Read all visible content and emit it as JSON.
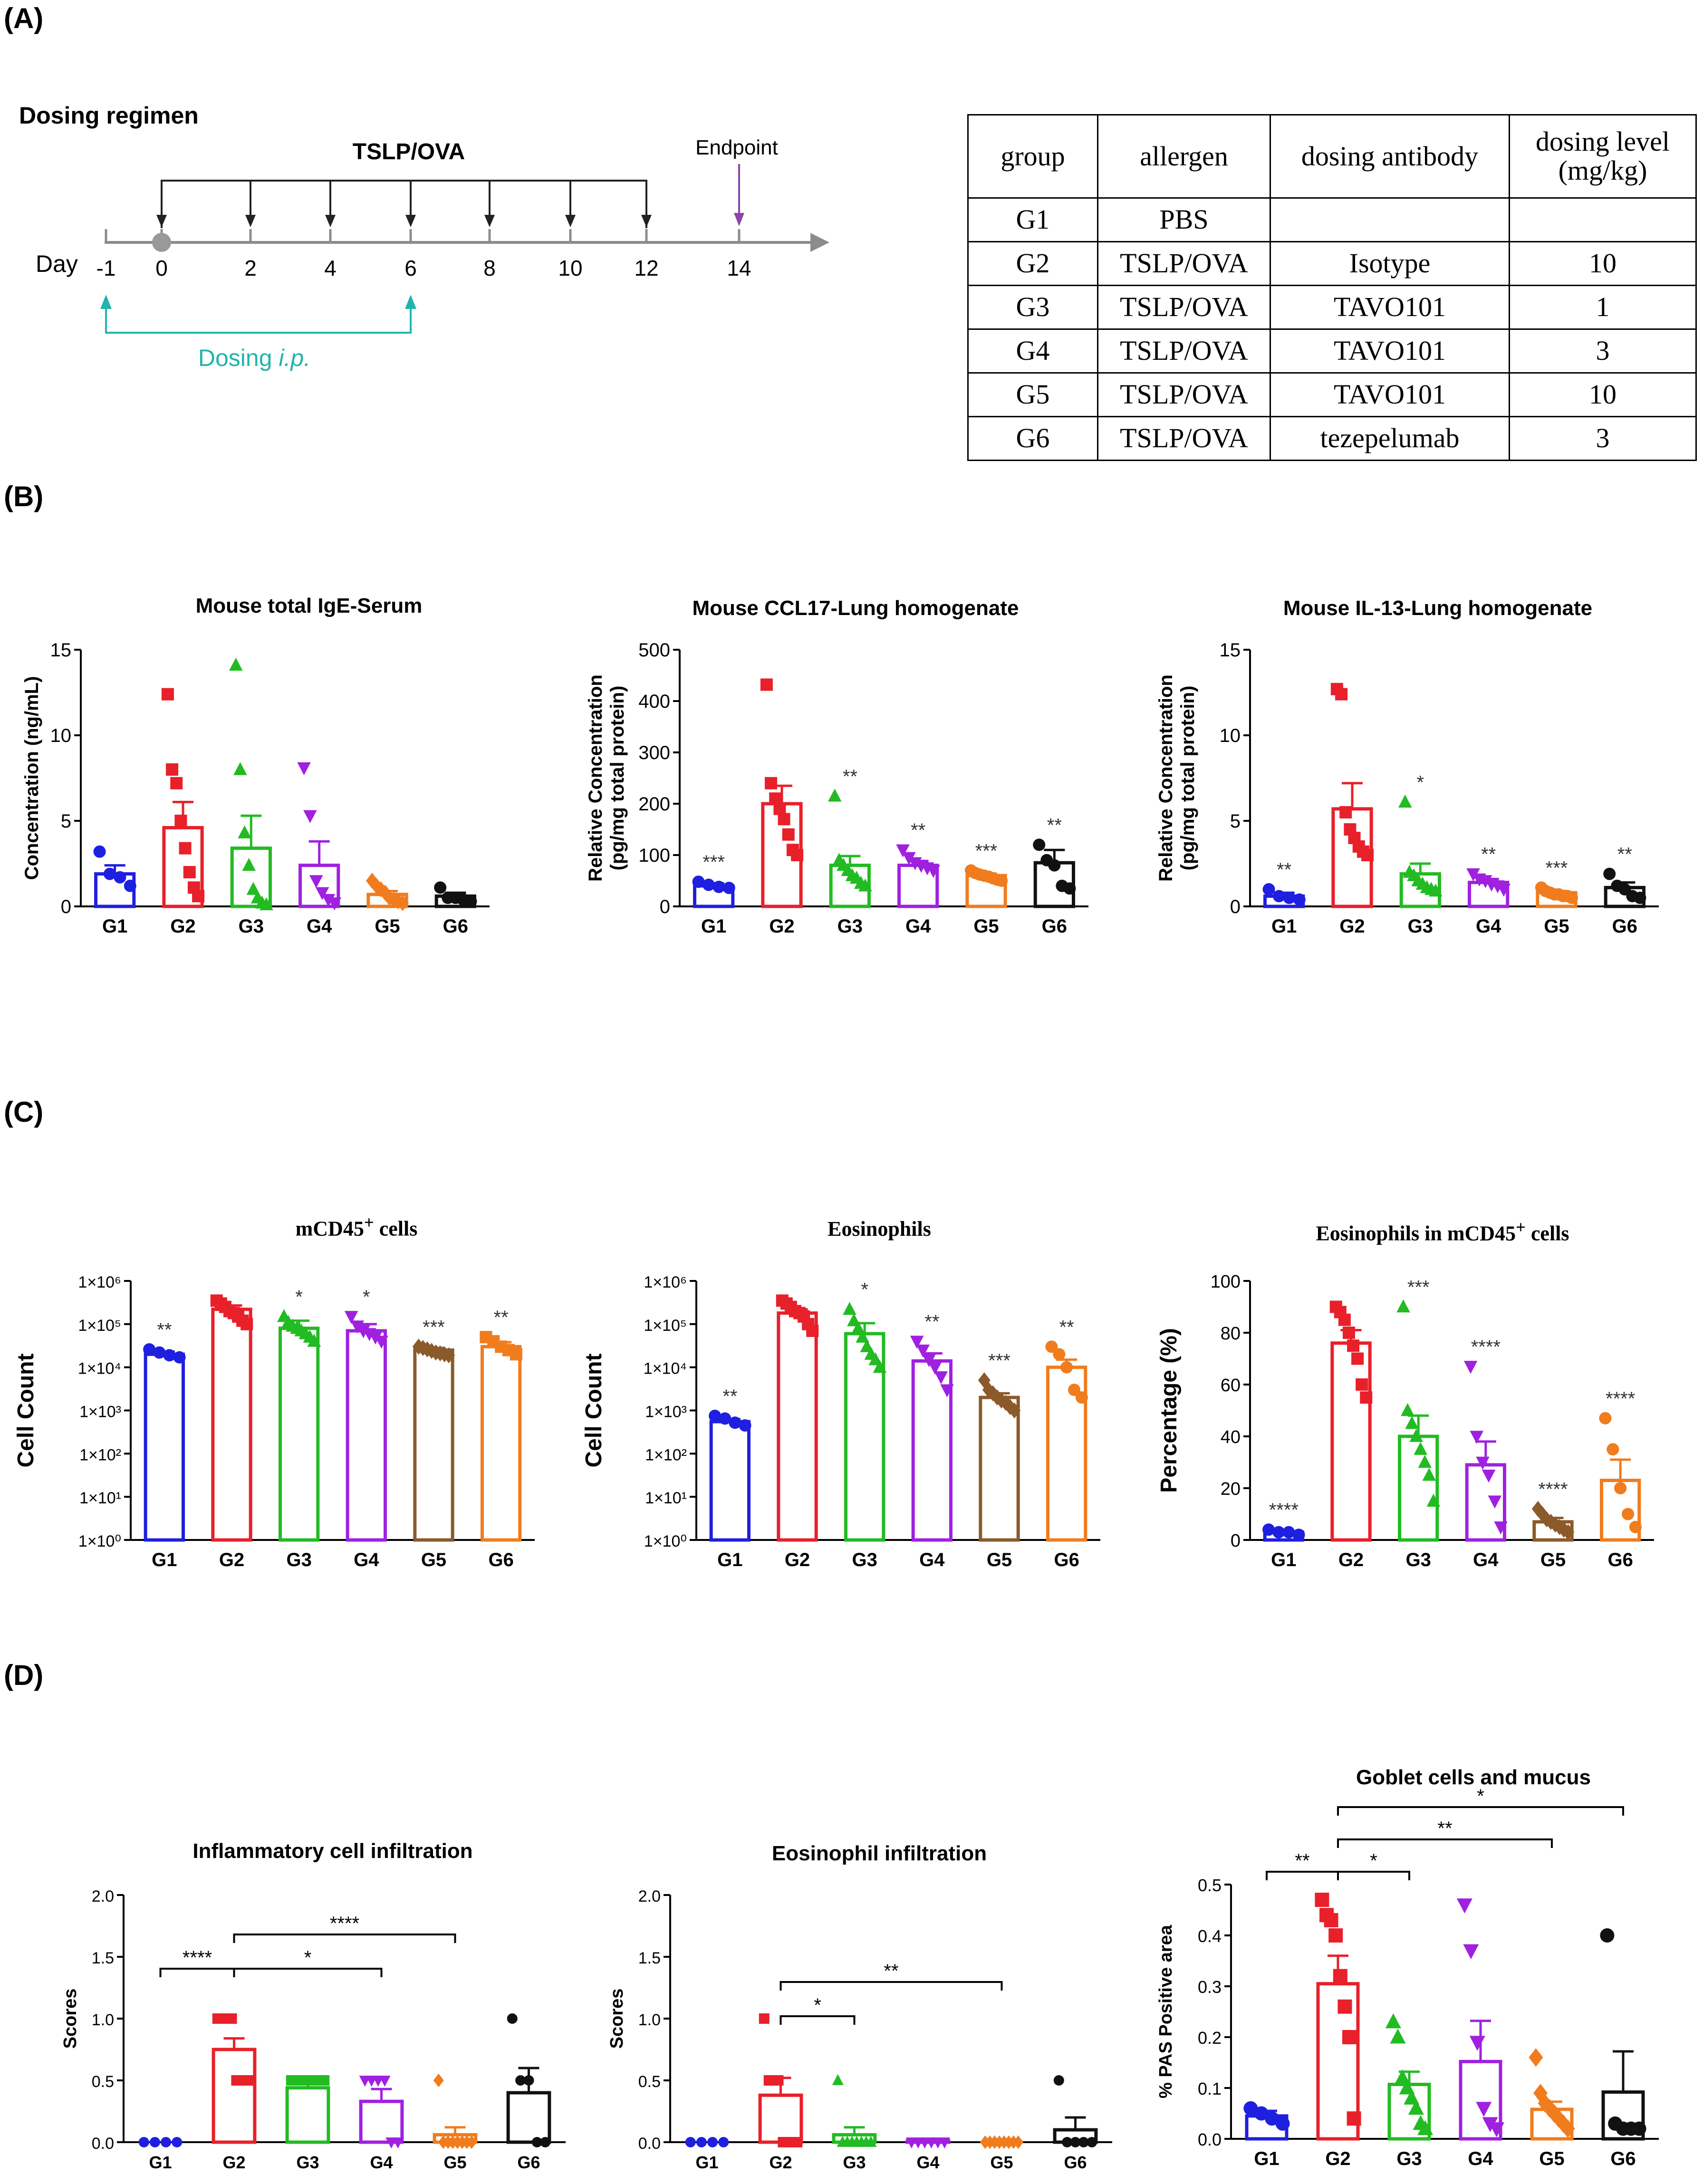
{
  "panels": {
    "A": "(A)",
    "B": "(B)",
    "C": "(C)",
    "D": "(D)"
  },
  "regimen": {
    "title": "Dosing regimen",
    "treatment_label": "TSLP/OVA",
    "endpoint_label": "Endpoint",
    "day_label": "Day",
    "days": [
      "-1",
      "0",
      "2",
      "4",
      "6",
      "8",
      "10",
      "12",
      "14"
    ],
    "dosing_label": "Dosing",
    "dosing_route": "i.p.",
    "colors": {
      "timeline": "#8c8c8c",
      "dosing": "#1fb5ad",
      "endpoint": "#8e44ad"
    }
  },
  "dosing_table": {
    "headers": [
      "group",
      "allergen",
      "dosing antibody",
      "dosing level (mg/kg)"
    ],
    "rows": [
      [
        "G1",
        "PBS",
        "",
        ""
      ],
      [
        "G2",
        "TSLP/OVA",
        "Isotype",
        "10"
      ],
      [
        "G3",
        "TSLP/OVA",
        "TAVO101",
        "1"
      ],
      [
        "G4",
        "TSLP/OVA",
        "TAVO101",
        "3"
      ],
      [
        "G5",
        "TSLP/OVA",
        "TAVO101",
        "10"
      ],
      [
        "G6",
        "TSLP/OVA",
        "tezepelumab",
        "3"
      ]
    ]
  },
  "group_colors": [
    "#1f1fe0",
    "#e8202a",
    "#22bb22",
    "#a020e0",
    "#f07c1e",
    "#111111"
  ],
  "group_colors_c": [
    "#1f1fe0",
    "#e8202a",
    "#22bb22",
    "#a020e0",
    "#8b5a2b",
    "#f07c1e"
  ],
  "chart_data": [
    {
      "id": "b1",
      "type": "bar",
      "title": "Mouse total IgE-Serum",
      "ylabel": "Concentration (ng/mL)",
      "ylim": [
        0,
        15
      ],
      "yticks": [
        0,
        5,
        10,
        15
      ],
      "categories": [
        "G1",
        "G2",
        "G3",
        "G4",
        "G5",
        "G6"
      ],
      "values": [
        1.9,
        4.6,
        3.4,
        2.4,
        0.7,
        0.6
      ],
      "errors": [
        0.5,
        1.5,
        1.9,
        1.4,
        0.2,
        0.2
      ],
      "significance": [
        "",
        "",
        "",
        "",
        "",
        ""
      ],
      "points": [
        [
          3.2,
          1.9,
          1.7,
          1.2
        ],
        [
          12.4,
          8.0,
          7.2,
          5.0,
          3.4,
          2.0,
          1.1,
          0.6
        ],
        [
          14.1,
          8.0,
          4.3,
          2.4,
          1.0,
          0.5,
          0.2,
          0.1
        ],
        [
          8.1,
          5.3,
          1.5,
          0.8,
          0.4,
          0.2
        ],
        [
          1.5,
          1.2,
          1.0,
          0.8,
          0.5,
          0.4,
          0.3,
          0.2
        ],
        [
          1.1,
          0.5,
          0.5,
          0.4,
          0.3
        ]
      ],
      "marker_shapes": [
        "circle",
        "square",
        "triangle",
        "triangle-down",
        "diamond",
        "circle"
      ]
    },
    {
      "id": "b2",
      "type": "bar",
      "title": "Mouse CCL17-Lung homogenate",
      "ylabel": "Relative Concentration (pg/mg total protein)",
      "ylim": [
        0,
        500
      ],
      "yticks": [
        0,
        100,
        200,
        300,
        400,
        500
      ],
      "categories": [
        "G1",
        "G2",
        "G3",
        "G4",
        "G5",
        "G6"
      ],
      "values": [
        40,
        200,
        80,
        80,
        60,
        85
      ],
      "errors": [
        5,
        35,
        18,
        8,
        4,
        25
      ],
      "significance": [
        "***",
        "",
        "**",
        "**",
        "***",
        "**"
      ],
      "points": [
        [
          48,
          42,
          38,
          36
        ],
        [
          432,
          240,
          210,
          190,
          170,
          140,
          110,
          100
        ],
        [
          215,
          90,
          80,
          70,
          60,
          55,
          45,
          40
        ],
        [
          110,
          95,
          85,
          80,
          75,
          70
        ],
        [
          70,
          65,
          62,
          60,
          58,
          55,
          52,
          50
        ],
        [
          120,
          90,
          80,
          40,
          35
        ]
      ],
      "marker_shapes": [
        "circle",
        "square",
        "triangle",
        "triangle-down",
        "circle",
        "circle"
      ]
    },
    {
      "id": "b3",
      "type": "bar",
      "title": "Mouse IL-13-Lung homogenate",
      "ylabel": "Relative Concentration (pg/mg total protein)",
      "ylim": [
        0,
        15
      ],
      "yticks": [
        0,
        5,
        10,
        15
      ],
      "categories": [
        "G1",
        "G2",
        "G3",
        "G4",
        "G5",
        "G6"
      ],
      "values": [
        0.6,
        5.7,
        1.9,
        1.4,
        0.8,
        1.1
      ],
      "errors": [
        0.2,
        1.5,
        0.6,
        0.2,
        0.1,
        0.3
      ],
      "significance": [
        "**",
        "",
        "*",
        "**",
        "***",
        "**"
      ],
      "points": [
        [
          1.0,
          0.6,
          0.5,
          0.4
        ],
        [
          12.7,
          12.4,
          5.5,
          4.5,
          4.0,
          3.5,
          3.2,
          3.0
        ],
        [
          6.1,
          2.0,
          1.8,
          1.5,
          1.3,
          1.1,
          1.0,
          0.9
        ],
        [
          1.9,
          1.6,
          1.5,
          1.3,
          1.2,
          1.0
        ],
        [
          1.1,
          0.9,
          0.8,
          0.7,
          0.7,
          0.6,
          0.6,
          0.5
        ],
        [
          1.9,
          1.2,
          1.0,
          0.6,
          0.5
        ]
      ],
      "marker_shapes": [
        "circle",
        "square",
        "triangle",
        "triangle-down",
        "circle",
        "circle"
      ]
    },
    {
      "id": "c1",
      "type": "bar",
      "scale": "log",
      "title": "mCD45+ cells",
      "ylabel": "Cell Count",
      "ylim": [
        1,
        1000000
      ],
      "yticks": [
        "1×10⁰",
        "1×10¹",
        "1×10²",
        "1×10³",
        "1×10⁴",
        "1×10⁵",
        "1×10⁶"
      ],
      "categories": [
        "G1",
        "G2",
        "G3",
        "G4",
        "G5",
        "G6"
      ],
      "values": [
        20000,
        220000,
        80000,
        70000,
        25000,
        30000
      ],
      "errors": [
        3000,
        50000,
        40000,
        30000,
        3000,
        8000
      ],
      "significance": [
        "**",
        "",
        "*",
        "*",
        "***",
        "**"
      ],
      "points": [
        [
          26000,
          22000,
          19000,
          17000
        ],
        [
          350000,
          300000,
          250000,
          200000,
          180000,
          150000,
          120000,
          100000
        ],
        [
          150000,
          110000,
          90000,
          80000,
          70000,
          60000,
          50000,
          40000
        ],
        [
          150000,
          90000,
          70000,
          60000,
          50000,
          40000
        ],
        [
          30000,
          28000,
          26000,
          24000,
          22000,
          21000,
          20000,
          19000
        ],
        [
          50000,
          40000,
          30000,
          25000,
          20000
        ]
      ],
      "marker_shapes": [
        "circle",
        "square",
        "triangle",
        "triangle-down",
        "diamond",
        "square"
      ]
    },
    {
      "id": "c2",
      "type": "bar",
      "scale": "log",
      "title": "Eosinophils",
      "ylabel": "Cell Count",
      "ylim": [
        1,
        1000000
      ],
      "yticks": [
        "1×10⁰",
        "1×10¹",
        "1×10²",
        "1×10³",
        "1×10⁴",
        "1×10⁵",
        "1×10⁶"
      ],
      "categories": [
        "G1",
        "G2",
        "G3",
        "G4",
        "G5",
        "G6"
      ],
      "values": [
        550,
        180000,
        60000,
        14000,
        2000,
        10000
      ],
      "errors": [
        80,
        40000,
        45000,
        7000,
        500,
        5000
      ],
      "significance": [
        "**",
        "",
        "*",
        "**",
        "***",
        "**"
      ],
      "points": [
        [
          750,
          650,
          520,
          450
        ],
        [
          350000,
          300000,
          250000,
          200000,
          180000,
          150000,
          100000,
          70000
        ],
        [
          220000,
          120000,
          80000,
          50000,
          30000,
          20000,
          15000,
          10000
        ],
        [
          40000,
          25000,
          15000,
          10000,
          6000,
          3000
        ],
        [
          5000,
          3000,
          2500,
          2000,
          1700,
          1500,
          1200,
          1000
        ],
        [
          30000,
          20000,
          10000,
          3000,
          2000
        ]
      ],
      "marker_shapes": [
        "circle",
        "square",
        "triangle",
        "triangle-down",
        "diamond",
        "circle"
      ]
    },
    {
      "id": "c3",
      "type": "bar",
      "title": "Eosinophils in mCD45+ cells",
      "ylabel": "Percentage (%)",
      "ylim": [
        0,
        100
      ],
      "yticks": [
        0,
        20,
        40,
        60,
        80,
        100
      ],
      "categories": [
        "G1",
        "G2",
        "G3",
        "G4",
        "G5",
        "G6"
      ],
      "values": [
        3,
        76,
        40,
        29,
        7,
        23
      ],
      "errors": [
        0.5,
        5,
        8,
        9,
        1.5,
        8
      ],
      "significance": [
        "****",
        "",
        "***",
        "****",
        "****",
        "****"
      ],
      "points": [
        [
          4,
          3,
          3,
          2
        ],
        [
          90,
          88,
          85,
          80,
          75,
          70,
          60,
          55
        ],
        [
          90,
          50,
          45,
          40,
          35,
          30,
          25,
          15
        ],
        [
          67,
          40,
          30,
          25,
          15,
          5
        ],
        [
          12,
          10,
          8,
          7,
          6,
          5,
          4,
          3
        ],
        [
          47,
          35,
          20,
          10,
          5
        ]
      ],
      "marker_shapes": [
        "circle",
        "square",
        "triangle",
        "triangle-down",
        "diamond",
        "circle"
      ]
    },
    {
      "id": "d1",
      "type": "bar",
      "title": "Inflammatory cell infiltration",
      "ylabel": "Scores",
      "ylim": [
        0,
        2
      ],
      "yticks": [
        "0.0",
        "0.5",
        "1.0",
        "1.5",
        "2.0"
      ],
      "categories": [
        "G1",
        "G2",
        "G3",
        "G4",
        "G5",
        "G6"
      ],
      "values": [
        0,
        0.75,
        0.44,
        0.33,
        0.06,
        0.4
      ],
      "errors": [
        0,
        0.09,
        0.03,
        0.1,
        0.06,
        0.2
      ],
      "significance": [
        "",
        "",
        "",
        "",
        "",
        ""
      ],
      "comparisons": [
        {
          "from": "G1",
          "to": "G2",
          "label": "****",
          "level": 1
        },
        {
          "from": "G2",
          "to": "G4",
          "label": "*",
          "level": 1
        },
        {
          "from": "G2",
          "to": "G5",
          "label": "****",
          "level": 2
        }
      ],
      "points": [
        [
          0,
          0,
          0,
          0
        ],
        [
          1.0,
          1.0,
          1.0,
          1.0,
          0.5,
          0.5,
          0.5,
          0.5
        ],
        [
          0.5,
          0.5,
          0.5,
          0.5,
          0.5,
          0.5,
          0.5,
          0.5
        ],
        [
          0.5,
          0.5,
          0.5,
          0.5,
          0,
          0
        ],
        [
          0.5,
          0,
          0,
          0,
          0,
          0,
          0,
          0
        ],
        [
          1.0,
          0.5,
          0.5,
          0,
          0
        ]
      ],
      "marker_shapes": [
        "circle",
        "square",
        "square",
        "triangle-down",
        "diamond",
        "circle"
      ]
    },
    {
      "id": "d2",
      "type": "bar",
      "title": "Eosinophil infiltration",
      "ylabel": "Scores",
      "ylim": [
        0,
        2
      ],
      "yticks": [
        "0.0",
        "0.5",
        "1.0",
        "1.5",
        "2.0"
      ],
      "categories": [
        "G1",
        "G2",
        "G3",
        "G4",
        "G5",
        "G6"
      ],
      "values": [
        0,
        0.38,
        0.06,
        0.01,
        0,
        0.1
      ],
      "errors": [
        0,
        0.14,
        0.06,
        0.01,
        0,
        0.1
      ],
      "significance": [
        "",
        "",
        "",
        "",
        "",
        ""
      ],
      "comparisons": [
        {
          "from": "G2",
          "to": "G3",
          "label": "*",
          "level": 1
        },
        {
          "from": "G2",
          "to": "G5",
          "label": "**",
          "level": 2
        }
      ],
      "points": [
        [
          0,
          0,
          0,
          0
        ],
        [
          1.0,
          0.5,
          0.5,
          0.5,
          0,
          0,
          0,
          0
        ],
        [
          0.5,
          0,
          0,
          0,
          0,
          0,
          0,
          0
        ],
        [
          0,
          0,
          0,
          0,
          0,
          0
        ],
        [
          0,
          0,
          0,
          0,
          0,
          0,
          0,
          0
        ],
        [
          0.5,
          0,
          0,
          0,
          0
        ]
      ],
      "marker_shapes": [
        "circle",
        "square",
        "triangle",
        "triangle-down",
        "diamond",
        "circle"
      ]
    },
    {
      "id": "d3",
      "type": "bar",
      "title": "Goblet cells and mucus",
      "ylabel": "% PAS Positive area",
      "ylim": [
        0,
        0.5
      ],
      "yticks": [
        "0.0",
        "0.1",
        "0.2",
        "0.3",
        "0.4",
        "0.5"
      ],
      "categories": [
        "G1",
        "G2",
        "G3",
        "G4",
        "G5",
        "G6"
      ],
      "values": [
        0.045,
        0.305,
        0.107,
        0.152,
        0.058,
        0.092
      ],
      "errors": [
        0.01,
        0.055,
        0.025,
        0.08,
        0.015,
        0.08
      ],
      "significance": [
        "",
        "",
        "",
        "",
        "",
        ""
      ],
      "comparisons": [
        {
          "from": "G1",
          "to": "G2",
          "label": "**",
          "level": 1
        },
        {
          "from": "G2",
          "to": "G3",
          "label": "*",
          "level": 1
        },
        {
          "from": "G2",
          "to": "G5",
          "label": "**",
          "level": 2
        },
        {
          "from": "G2",
          "to": "G6",
          "label": "*",
          "level": 3
        }
      ],
      "points": [
        [
          0.06,
          0.05,
          0.04,
          0.03
        ],
        [
          0.47,
          0.44,
          0.43,
          0.4,
          0.32,
          0.26,
          0.2,
          0.04
        ],
        [
          0.23,
          0.2,
          0.12,
          0.1,
          0.08,
          0.06,
          0.03,
          0.02
        ],
        [
          0.46,
          0.37,
          0.19,
          0.06,
          0.03,
          0.02
        ],
        [
          0.16,
          0.09,
          0.07,
          0.06,
          0.05,
          0.04,
          0.03,
          0.02
        ],
        [
          0.4,
          0.03,
          0.02,
          0.02,
          0.02
        ]
      ],
      "marker_shapes": [
        "circle",
        "square",
        "triangle",
        "triangle-down",
        "diamond",
        "circle"
      ]
    }
  ]
}
